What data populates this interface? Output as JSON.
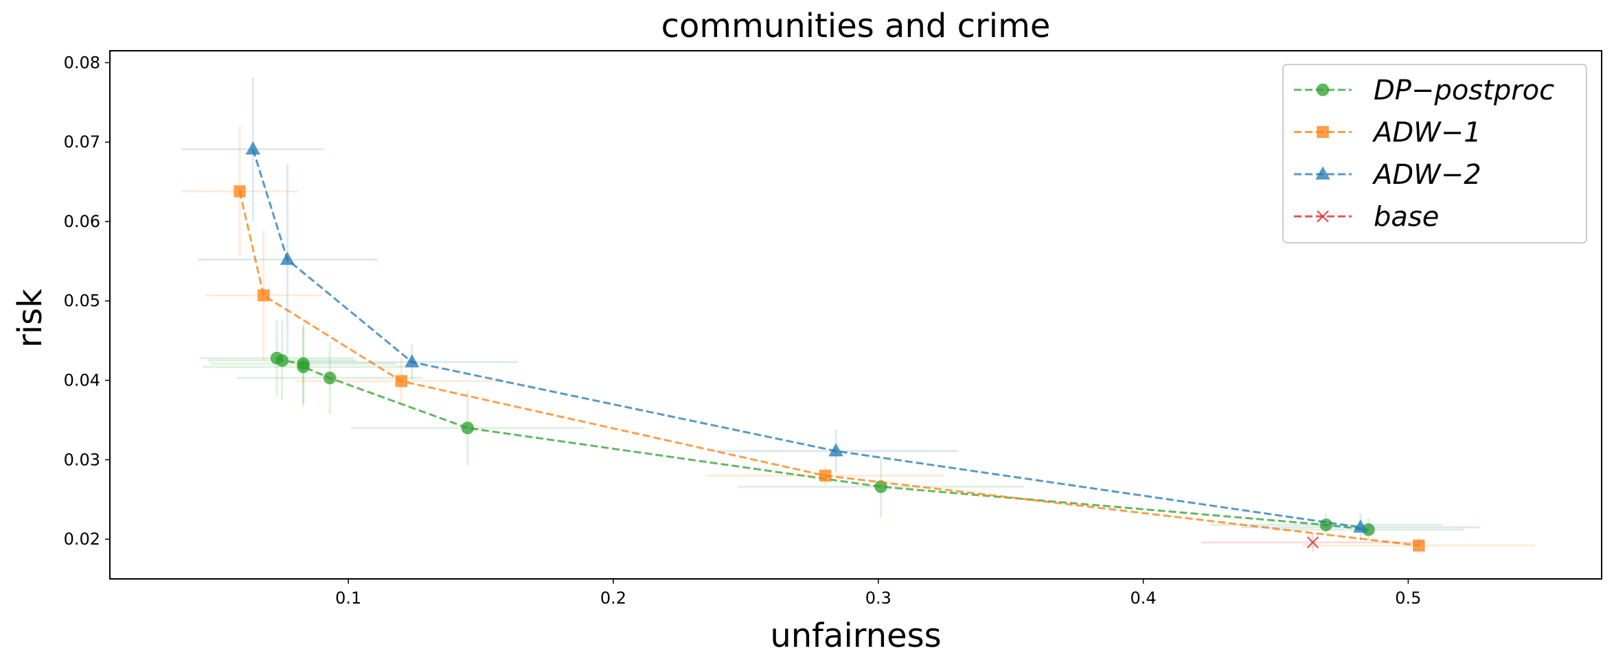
{
  "chart_data": {
    "type": "scatter",
    "title": "communities and crime",
    "xlabel": "unfairness",
    "ylabel": "risk",
    "xlim": [
      0.01,
      0.573
    ],
    "ylim": [
      0.015,
      0.0815
    ],
    "xticks": [
      0.1,
      0.2,
      0.3,
      0.4,
      0.5
    ],
    "xtick_labels": [
      "0.1",
      "0.2",
      "0.3",
      "0.4",
      "0.5"
    ],
    "yticks": [
      0.02,
      0.03,
      0.04,
      0.05,
      0.06,
      0.07,
      0.08
    ],
    "ytick_labels": [
      "0.02",
      "0.03",
      "0.04",
      "0.05",
      "0.06",
      "0.07",
      "0.08"
    ],
    "grid": false,
    "legend_position": "top-right",
    "series": [
      {
        "name": "DP−postproc",
        "color": "#2ca02c",
        "marker": "circle",
        "linestyle": "dashed",
        "points": [
          {
            "x": 0.073,
            "y": 0.0428,
            "xerr": 0.029,
            "yerr": 0.0048
          },
          {
            "x": 0.075,
            "y": 0.0425,
            "xerr": 0.028,
            "yerr": 0.005
          },
          {
            "x": 0.083,
            "y": 0.0421,
            "xerr": 0.035,
            "yerr": 0.005
          },
          {
            "x": 0.083,
            "y": 0.0417,
            "xerr": 0.038,
            "yerr": 0.005
          },
          {
            "x": 0.093,
            "y": 0.0403,
            "xerr": 0.035,
            "yerr": 0.0045
          },
          {
            "x": 0.145,
            "y": 0.034,
            "xerr": 0.044,
            "yerr": 0.0047
          },
          {
            "x": 0.301,
            "y": 0.0266,
            "xerr": 0.054,
            "yerr": 0.0038
          },
          {
            "x": 0.469,
            "y": 0.0218,
            "xerr": 0.044,
            "yerr": 0.0015
          },
          {
            "x": 0.485,
            "y": 0.0212,
            "xerr": 0.036,
            "yerr": 0.0014
          }
        ]
      },
      {
        "name": "ADW−1",
        "color": "#ff7f0e",
        "marker": "square",
        "linestyle": "dashed",
        "points": [
          {
            "x": 0.059,
            "y": 0.0638,
            "xerr": 0.022,
            "yerr": 0.0082
          },
          {
            "x": 0.068,
            "y": 0.0507,
            "xerr": 0.022,
            "yerr": 0.0082
          },
          {
            "x": 0.12,
            "y": 0.0399,
            "xerr": 0.04,
            "yerr": 0.003
          },
          {
            "x": 0.28,
            "y": 0.028,
            "xerr": 0.045,
            "yerr": 0.0012
          },
          {
            "x": 0.504,
            "y": 0.0192,
            "xerr": 0.044,
            "yerr": 0.001
          }
        ]
      },
      {
        "name": "ADW−2",
        "color": "#1f77b4",
        "marker": "triangle",
        "linestyle": "dashed",
        "points": [
          {
            "x": 0.064,
            "y": 0.0691,
            "xerr": 0.027,
            "yerr": 0.0091
          },
          {
            "x": 0.077,
            "y": 0.0552,
            "xerr": 0.034,
            "yerr": 0.012
          },
          {
            "x": 0.124,
            "y": 0.0423,
            "xerr": 0.04,
            "yerr": 0.0022
          },
          {
            "x": 0.284,
            "y": 0.0311,
            "xerr": 0.046,
            "yerr": 0.0027
          },
          {
            "x": 0.482,
            "y": 0.0215,
            "xerr": 0.045,
            "yerr": 0.0017
          }
        ]
      },
      {
        "name": "base",
        "color": "#d62728",
        "marker": "x",
        "linestyle": "dashed",
        "points": [
          {
            "x": 0.464,
            "y": 0.0196,
            "xerr": 0.042,
            "yerr": 0.0012
          }
        ]
      }
    ]
  }
}
